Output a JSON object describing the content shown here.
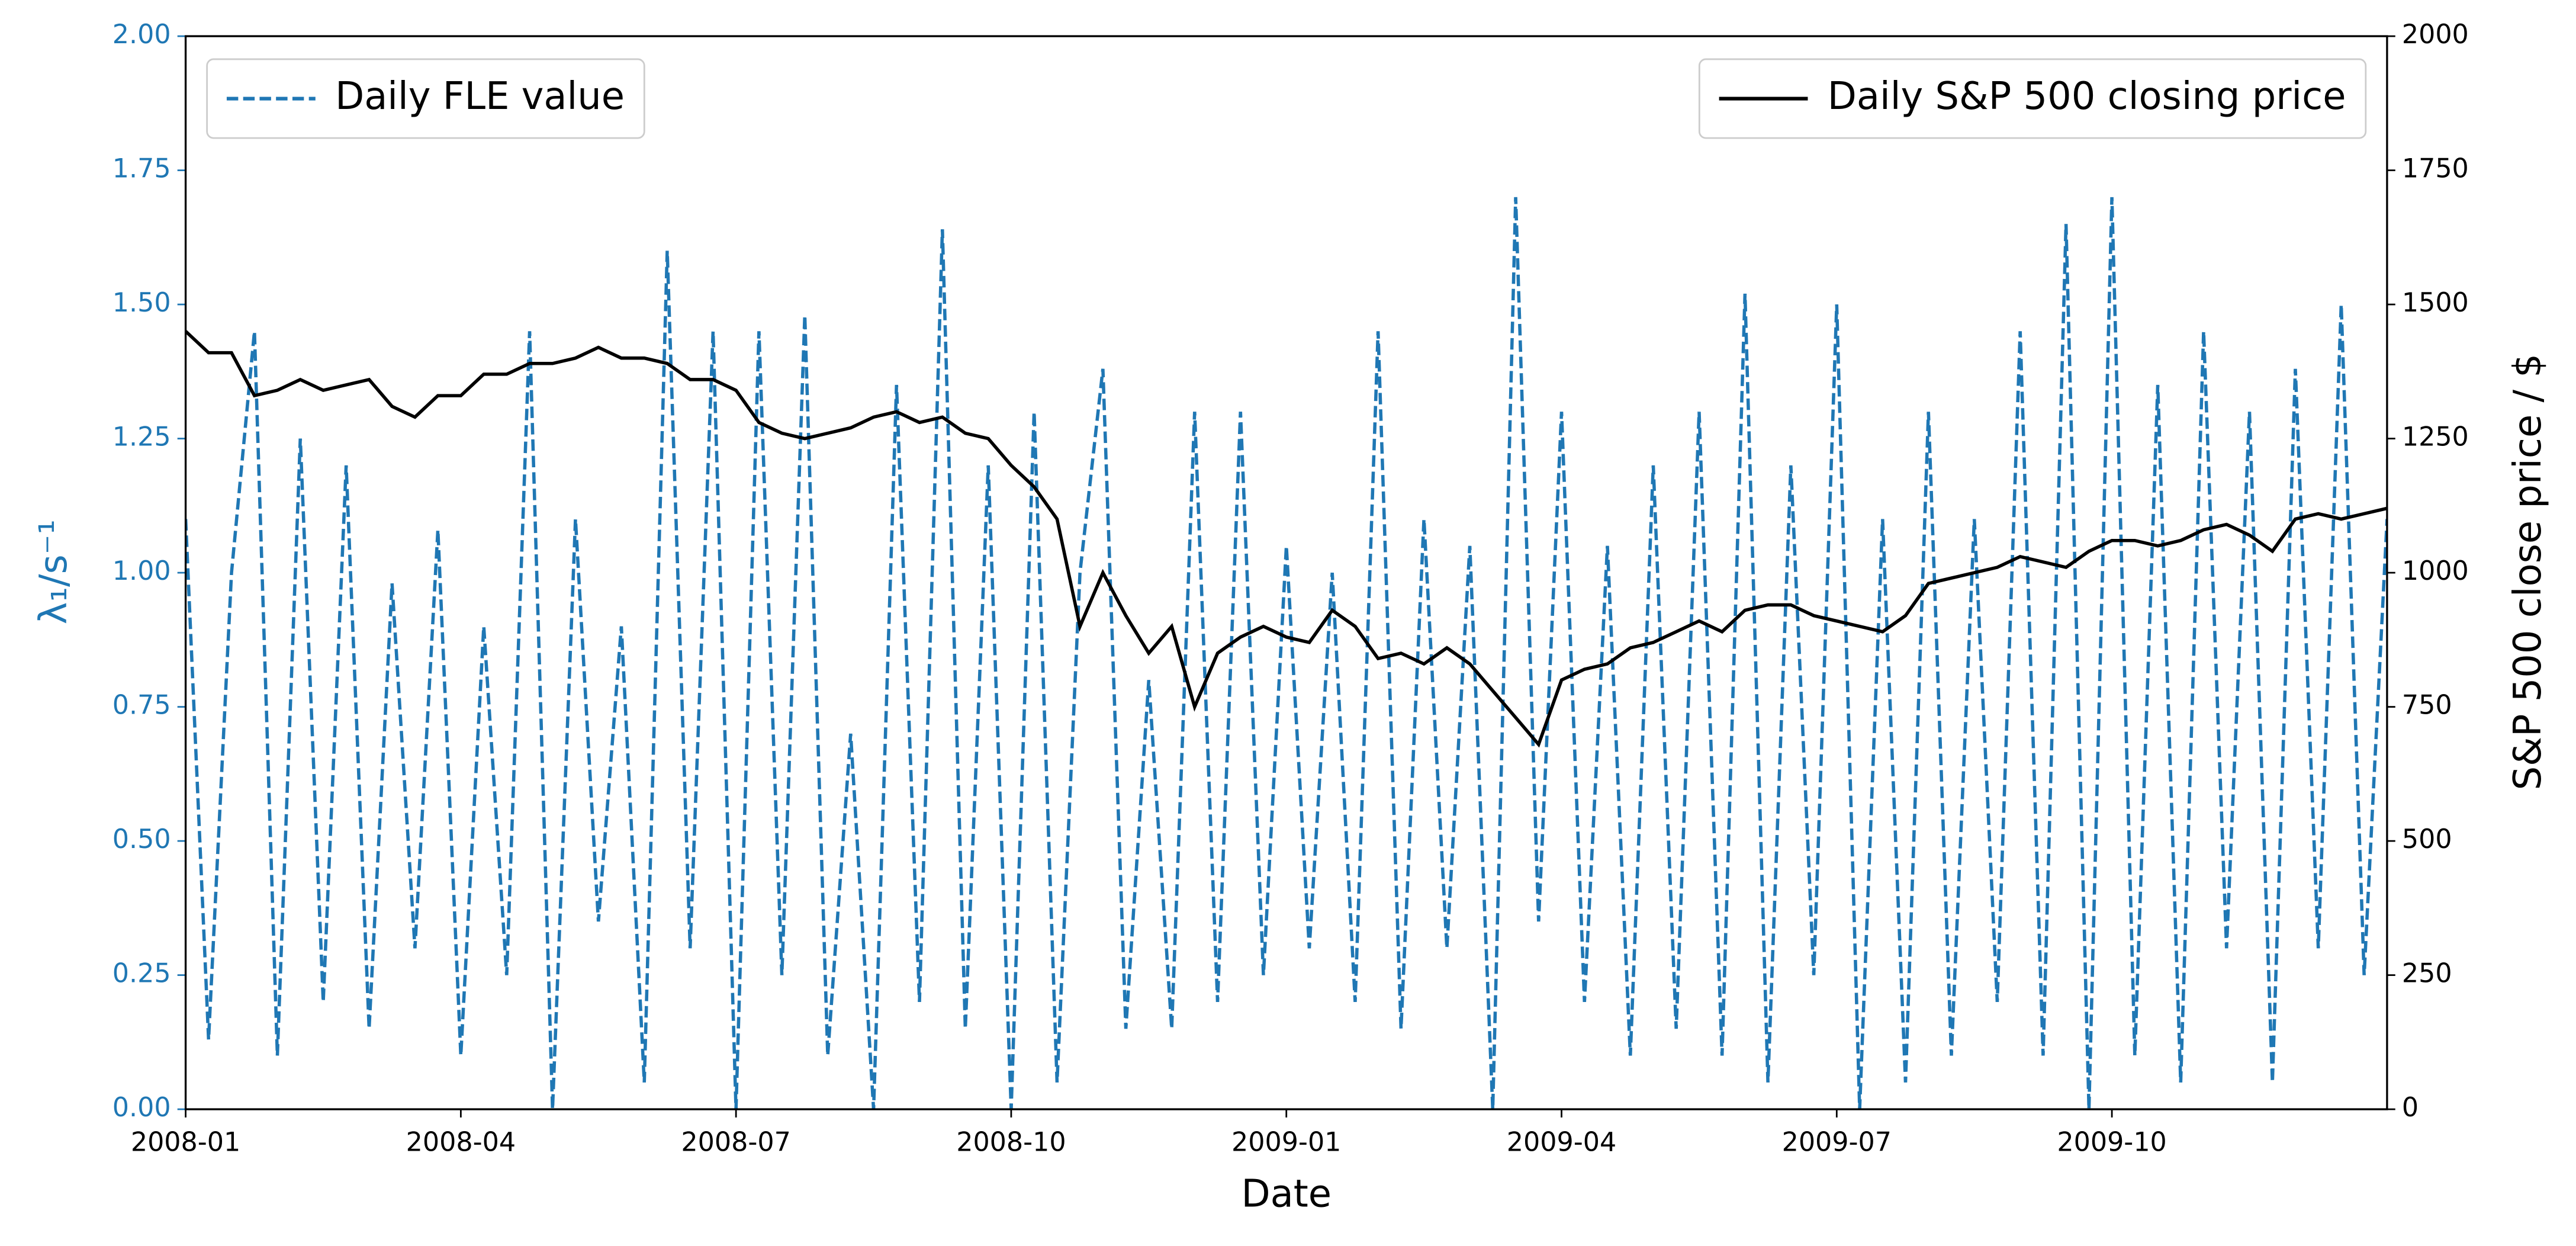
{
  "chart_data": {
    "type": "line",
    "xlabel": "Date",
    "ylabel": "λ₁/s⁻¹",
    "y2label": "S&P 500 close price / $",
    "xlim": [
      0,
      24
    ],
    "xticks": [
      {
        "value": 0,
        "label": "2008-01"
      },
      {
        "value": 3,
        "label": "2008-04"
      },
      {
        "value": 6,
        "label": "2008-07"
      },
      {
        "value": 9,
        "label": "2008-10"
      },
      {
        "value": 12,
        "label": "2009-01"
      },
      {
        "value": 15,
        "label": "2009-04"
      },
      {
        "value": 18,
        "label": "2009-07"
      },
      {
        "value": 21,
        "label": "2009-10"
      }
    ],
    "ylim": [
      0,
      2
    ],
    "yticks": [
      {
        "value": 0,
        "label": "0.00"
      },
      {
        "value": 0.25,
        "label": "0.25"
      },
      {
        "value": 0.5,
        "label": "0.50"
      },
      {
        "value": 0.75,
        "label": "0.75"
      },
      {
        "value": 1,
        "label": "1.00"
      },
      {
        "value": 1.25,
        "label": "1.25"
      },
      {
        "value": 1.5,
        "label": "1.50"
      },
      {
        "value": 1.75,
        "label": "1.75"
      },
      {
        "value": 2,
        "label": "2.00"
      }
    ],
    "y2lim": [
      0,
      2000
    ],
    "y2ticks": [
      0,
      250,
      500,
      750,
      1000,
      1250,
      1500,
      1750,
      2000
    ],
    "yaxis_color": "#1f77b4",
    "x": [
      0,
      0.25,
      0.5,
      0.75,
      1,
      1.25,
      1.5,
      1.75,
      2,
      2.25,
      2.5,
      2.75,
      3,
      3.25,
      3.5,
      3.75,
      4,
      4.25,
      4.5,
      4.75,
      5,
      5.25,
      5.5,
      5.75,
      6,
      6.25,
      6.5,
      6.75,
      7,
      7.25,
      7.5,
      7.75,
      8,
      8.25,
      8.5,
      8.75,
      9,
      9.25,
      9.5,
      9.75,
      10,
      10.25,
      10.5,
      10.75,
      11,
      11.25,
      11.5,
      11.75,
      12,
      12.25,
      12.5,
      12.75,
      13,
      13.25,
      13.5,
      13.75,
      14,
      14.25,
      14.5,
      14.75,
      15,
      15.25,
      15.5,
      15.75,
      16,
      16.25,
      16.5,
      16.75,
      17,
      17.25,
      17.5,
      17.75,
      18,
      18.25,
      18.5,
      18.75,
      19,
      19.25,
      19.5,
      19.75,
      20,
      20.25,
      20.5,
      20.75,
      21,
      21.25,
      21.5,
      21.75,
      22,
      22.25,
      22.5,
      22.75,
      23,
      23.25,
      23.5,
      23.75,
      24
    ],
    "series": [
      {
        "name": "Daily FLE value",
        "color": "#1f77b4",
        "dash": "dashed",
        "axis": "y",
        "legend": "upper left",
        "values": [
          1.1,
          0.13,
          1.0,
          1.45,
          0.1,
          1.25,
          0.2,
          1.2,
          0.15,
          0.98,
          0.3,
          1.08,
          0.1,
          0.9,
          0.25,
          1.45,
          0.0,
          1.1,
          0.35,
          0.9,
          0.05,
          1.6,
          0.3,
          1.45,
          0.0,
          1.45,
          0.25,
          1.48,
          0.1,
          0.7,
          0.0,
          1.35,
          0.2,
          1.64,
          0.15,
          1.2,
          0.0,
          1.3,
          0.05,
          1.0,
          1.38,
          0.15,
          0.8,
          0.15,
          1.3,
          0.2,
          1.3,
          0.25,
          1.05,
          0.3,
          1.0,
          0.2,
          1.45,
          0.15,
          1.1,
          0.3,
          1.05,
          0.0,
          1.7,
          0.35,
          1.3,
          0.2,
          1.05,
          0.1,
          1.2,
          0.15,
          1.3,
          0.1,
          1.52,
          0.05,
          1.2,
          0.25,
          1.5,
          0.0,
          1.1,
          0.05,
          1.3,
          0.1,
          1.1,
          0.2,
          1.45,
          0.1,
          1.65,
          0.0,
          1.7,
          0.1,
          1.35,
          0.05,
          1.45,
          0.3,
          1.3,
          0.05,
          1.38,
          0.3,
          1.5,
          0.25,
          1.1
        ]
      },
      {
        "name": "Daily S&P 500 closing price",
        "color": "#000000",
        "dash": "solid",
        "axis": "y2",
        "legend": "upper right",
        "values": [
          1450,
          1410,
          1410,
          1330,
          1340,
          1360,
          1340,
          1350,
          1360,
          1310,
          1290,
          1330,
          1330,
          1370,
          1370,
          1390,
          1390,
          1400,
          1420,
          1400,
          1400,
          1390,
          1360,
          1360,
          1340,
          1280,
          1260,
          1250,
          1260,
          1270,
          1290,
          1300,
          1280,
          1290,
          1260,
          1250,
          1200,
          1160,
          1100,
          900,
          1000,
          920,
          850,
          900,
          750,
          850,
          880,
          900,
          880,
          870,
          930,
          900,
          840,
          850,
          830,
          860,
          830,
          780,
          730,
          680,
          800,
          820,
          830,
          860,
          870,
          890,
          910,
          890,
          930,
          940,
          940,
          920,
          910,
          900,
          890,
          920,
          980,
          990,
          1000,
          1010,
          1030,
          1020,
          1010,
          1040,
          1060,
          1060,
          1050,
          1060,
          1080,
          1090,
          1070,
          1040,
          1100,
          1110,
          1100,
          1110,
          1120
        ]
      }
    ]
  }
}
